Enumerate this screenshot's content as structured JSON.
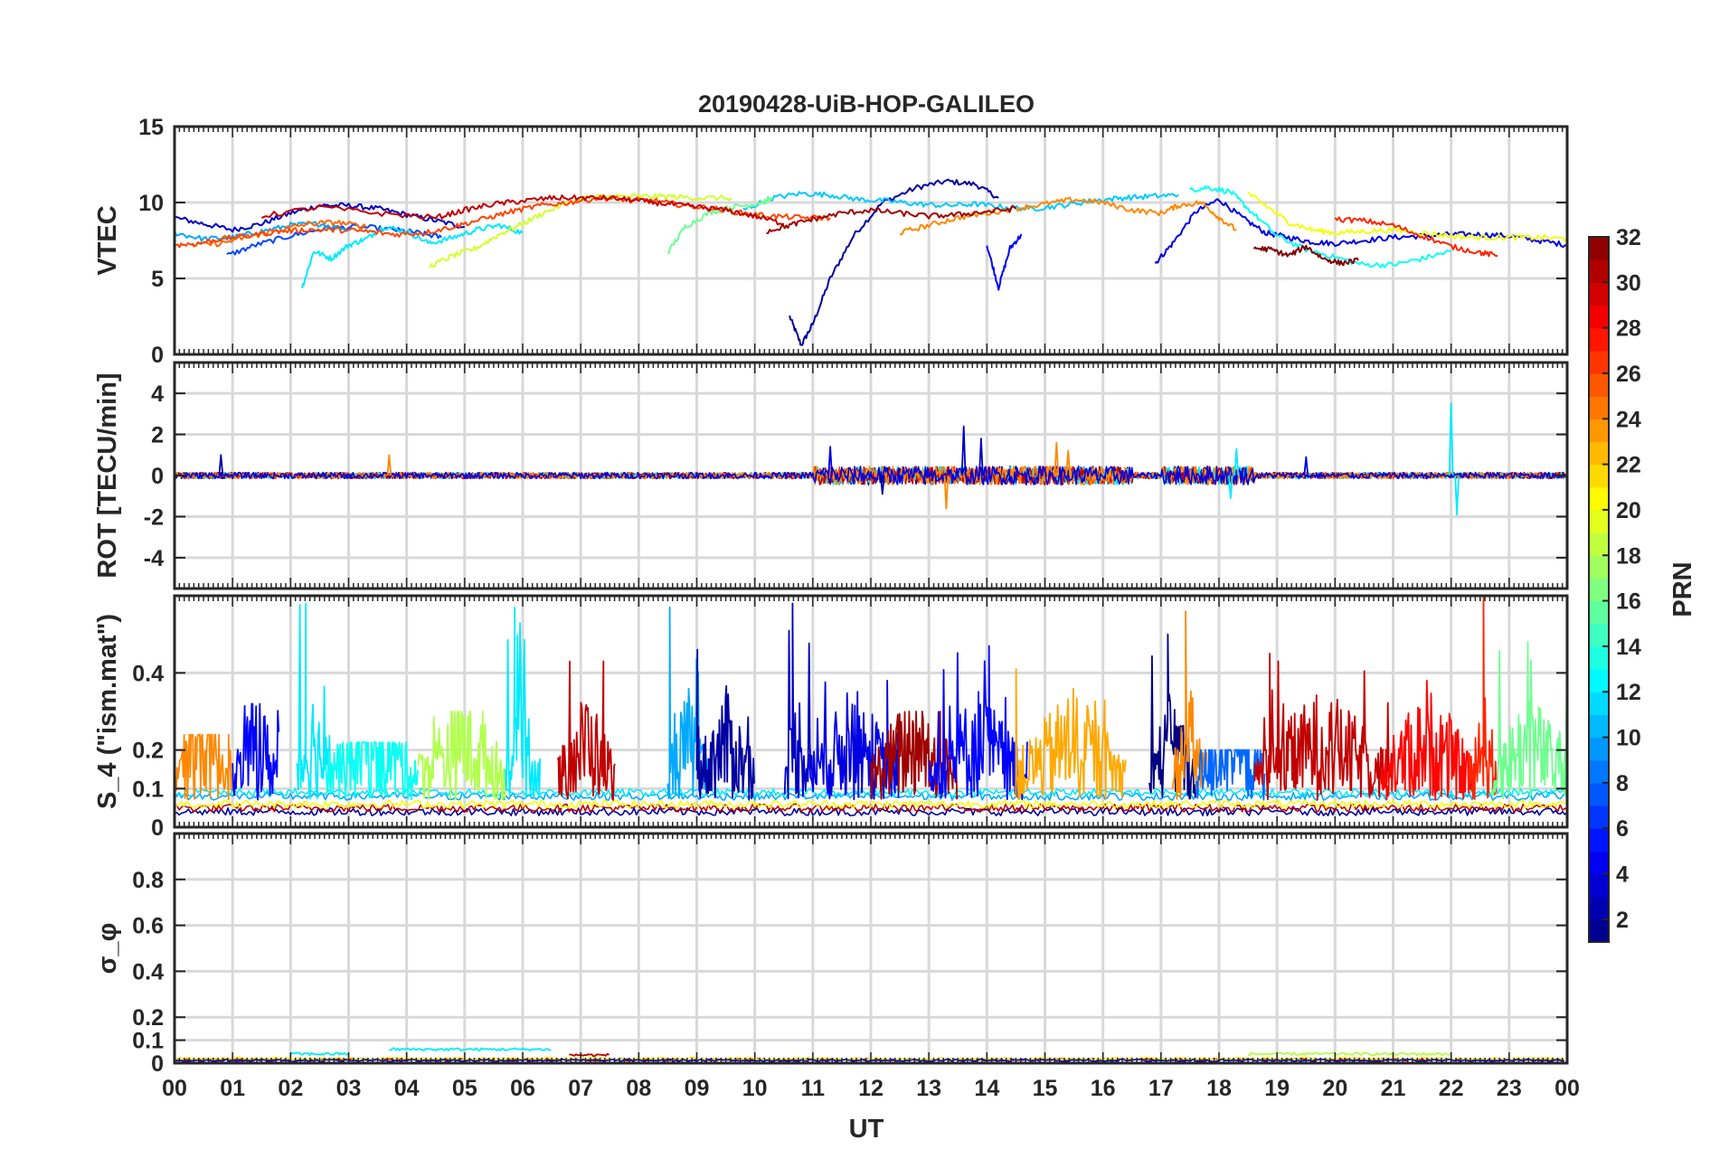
{
  "chart_data": [
    {
      "type": "line",
      "title": "20190428-UiB-HOP-GALILEO",
      "ylabel": "VTEC",
      "xlabel": "",
      "xlim": [
        0,
        24
      ],
      "ylim": [
        0,
        15
      ],
      "yticks": [
        0,
        5,
        10,
        15
      ],
      "series": [
        {
          "name": "PRN 2",
          "prn": 2,
          "x": [
            10.6,
            10.8,
            11.0,
            11.3,
            11.7,
            12.2,
            12.8,
            13.3,
            13.8,
            14.2
          ],
          "values": [
            2.5,
            0.6,
            2.0,
            5.0,
            7.8,
            10.0,
            11.0,
            11.4,
            11.2,
            10.3
          ]
        },
        {
          "name": "PRN 3",
          "prn": 3,
          "x": [
            0.0,
            0.5,
            1.0,
            1.5,
            2.0,
            2.5,
            3.0,
            3.5,
            4.0,
            4.5,
            5.0
          ],
          "values": [
            9.0,
            8.6,
            8.2,
            8.6,
            9.3,
            9.8,
            9.8,
            9.6,
            9.2,
            8.8,
            8.4
          ]
        },
        {
          "name": "PRN 4",
          "prn": 4,
          "x": [
            16.9,
            17.2,
            17.6,
            18.0,
            18.4,
            18.8,
            19.2,
            19.6,
            20.0,
            20.5,
            21.0,
            21.5,
            22.0,
            22.5,
            23.0,
            23.5,
            24.0
          ],
          "values": [
            6.0,
            7.3,
            9.4,
            10.2,
            9.0,
            8.0,
            7.7,
            7.4,
            7.3,
            7.5,
            7.7,
            7.8,
            7.9,
            7.9,
            7.8,
            7.5,
            7.2
          ]
        },
        {
          "name": "PRN 5",
          "prn": 5,
          "x": [
            14.0,
            14.2,
            14.4,
            14.6
          ],
          "values": [
            7.2,
            4.4,
            7.0,
            7.9
          ]
        },
        {
          "name": "PRN 7",
          "prn": 7,
          "x": [
            0.9,
            1.4,
            2.0,
            2.6,
            3.2,
            3.8,
            4.2,
            4.6
          ],
          "values": [
            6.5,
            7.2,
            7.8,
            8.3,
            8.4,
            8.2,
            8.0,
            7.7
          ]
        },
        {
          "name": "PRN 10",
          "prn": 10,
          "x": [
            0.0,
            0.5,
            1.0,
            1.5,
            2.0,
            2.5,
            3.0
          ],
          "values": [
            8.0,
            7.6,
            7.7,
            8.1,
            8.5,
            8.6,
            8.2
          ]
        },
        {
          "name": "PRN 12",
          "prn": 12,
          "x": [
            2.2,
            2.4,
            2.7,
            3.0,
            3.3,
            3.6,
            4.0,
            4.4,
            4.8,
            5.2,
            5.6,
            6.0
          ],
          "values": [
            4.4,
            6.8,
            6.3,
            7.2,
            7.6,
            8.4,
            8.1,
            7.3,
            7.7,
            8.2,
            8.5,
            8.0
          ]
        },
        {
          "name": "PRN 13",
          "prn": 13,
          "x": [
            17.5,
            17.8,
            18.2,
            18.5,
            19.0,
            19.5,
            20.0,
            20.5,
            21.0,
            21.5,
            22.0
          ],
          "values": [
            10.8,
            11.0,
            10.7,
            9.6,
            7.8,
            6.9,
            6.4,
            5.9,
            5.9,
            6.3,
            6.8
          ]
        },
        {
          "name": "PRN 11",
          "prn": 11,
          "x": [
            9.8,
            10.3,
            10.8,
            11.3,
            11.8,
            12.3,
            12.8,
            13.3,
            13.8,
            14.3,
            14.8,
            15.3,
            15.8,
            16.3,
            16.8,
            17.3
          ],
          "values": [
            9.5,
            10.3,
            10.6,
            10.5,
            10.2,
            10.1,
            9.9,
            9.8,
            9.9,
            9.7,
            9.6,
            9.8,
            10.1,
            10.3,
            10.4,
            10.5
          ]
        },
        {
          "name": "PRN 16",
          "prn": 16,
          "x": [
            8.5,
            8.8,
            9.2,
            9.6,
            10.0,
            10.3
          ],
          "values": [
            6.7,
            8.4,
            9.3,
            9.7,
            9.9,
            10.2
          ]
        },
        {
          "name": "PRN 19",
          "prn": 19,
          "x": [
            4.4,
            4.8,
            5.2,
            5.6,
            6.0,
            6.4,
            7.0,
            7.5,
            8.0,
            8.5,
            9.0,
            9.6
          ],
          "values": [
            5.8,
            6.5,
            7.0,
            7.9,
            8.6,
            9.4,
            10.3,
            10.4,
            10.4,
            10.4,
            10.3,
            10.3
          ]
        },
        {
          "name": "PRN 20",
          "prn": 20,
          "x": [
            18.5,
            18.8,
            19.2,
            19.6,
            20.0,
            20.5,
            21.0,
            21.5,
            22.0,
            22.5,
            23.0,
            23.5,
            24.0
          ],
          "values": [
            10.6,
            9.8,
            8.7,
            8.2,
            8.0,
            8.1,
            8.2,
            8.0,
            7.8,
            7.7,
            7.7,
            7.7,
            7.6
          ]
        },
        {
          "name": "PRN 24",
          "prn": 24,
          "x": [
            12.5,
            13.0,
            13.5,
            14.0,
            14.5,
            15.0,
            15.5,
            16.0,
            16.5,
            17.0,
            17.3,
            17.7,
            18.0,
            18.3
          ],
          "values": [
            8.0,
            8.5,
            9.0,
            9.3,
            9.6,
            9.9,
            10.2,
            10.0,
            9.5,
            9.3,
            9.8,
            10.0,
            9.0,
            8.2
          ]
        },
        {
          "name": "PRN 25",
          "prn": 25,
          "x": [
            0.3,
            0.8,
            1.3,
            1.8,
            2.3,
            2.8,
            3.3
          ],
          "values": [
            7.2,
            7.3,
            7.8,
            8.2,
            8.6,
            8.7,
            8.4
          ]
        },
        {
          "name": "PRN 26",
          "prn": 26,
          "x": [
            0.0,
            0.4,
            0.8,
            1.3,
            1.8,
            2.3,
            2.8,
            3.3,
            3.8,
            4.3,
            4.8,
            5.3,
            5.8,
            6.3,
            6.8,
            7.3,
            7.8,
            8.3,
            8.8,
            9.3,
            9.8,
            10.3,
            10.8,
            11.3
          ],
          "values": [
            7.2,
            7.3,
            7.6,
            7.8,
            8.1,
            8.2,
            8.2,
            8.1,
            7.9,
            8.0,
            8.4,
            8.9,
            9.4,
            9.8,
            10.0,
            10.3,
            10.2,
            10.1,
            9.8,
            9.6,
            9.3,
            9.1,
            9.0,
            9.0
          ]
        },
        {
          "name": "PRN 27",
          "prn": 27,
          "x": [
            20.0,
            20.5,
            21.0,
            21.5,
            22.0,
            22.5,
            22.8
          ],
          "values": [
            8.9,
            8.8,
            8.5,
            7.8,
            7.1,
            6.7,
            6.5
          ]
        },
        {
          "name": "PRN 30",
          "prn": 30,
          "x": [
            1.5,
            2.5,
            3.5,
            4.5,
            5.0,
            5.5,
            6.0,
            6.5,
            7.0,
            7.5,
            8.0,
            8.5,
            9.0,
            9.5,
            10.0,
            10.5
          ],
          "values": [
            9.1,
            9.7,
            9.3,
            9.0,
            9.5,
            9.9,
            10.1,
            10.3,
            10.3,
            10.3,
            10.1,
            9.9,
            9.7,
            9.5,
            9.1,
            8.6
          ]
        },
        {
          "name": "PRN 31",
          "prn": 31,
          "x": [
            10.2,
            10.6,
            11.0,
            11.5,
            12.0,
            12.5,
            13.0,
            13.5,
            14.0,
            14.5
          ],
          "values": [
            8.1,
            8.5,
            8.9,
            9.3,
            9.5,
            9.3,
            9.1,
            9.2,
            9.4,
            9.6
          ]
        },
        {
          "name": "PRN 32",
          "prn": 32,
          "x": [
            18.6,
            18.9,
            19.2,
            19.5,
            19.8,
            20.1,
            20.4
          ],
          "values": [
            7.0,
            6.9,
            6.5,
            7.1,
            6.3,
            6.0,
            6.2
          ]
        }
      ]
    },
    {
      "type": "line",
      "ylabel": "ROT [TECU/min]",
      "xlim": [
        0,
        24
      ],
      "ylim": [
        -5.5,
        5.5
      ],
      "yticks": [
        -4,
        -2,
        0,
        2,
        4
      ],
      "baseline_noise": 0.15,
      "spikes": [
        {
          "x": 0.8,
          "value": 1.0,
          "prn": 2
        },
        {
          "x": 3.7,
          "value": 1.0,
          "prn": 24
        },
        {
          "x": 11.3,
          "value": 1.4,
          "prn": 4
        },
        {
          "x": 12.2,
          "value": -0.9,
          "prn": 2
        },
        {
          "x": 13.6,
          "value": 2.4,
          "prn": 3
        },
        {
          "x": 13.9,
          "value": 1.8,
          "prn": 3
        },
        {
          "x": 13.3,
          "value": -1.6,
          "prn": 24
        },
        {
          "x": 15.2,
          "value": 1.6,
          "prn": 24
        },
        {
          "x": 15.4,
          "value": 1.2,
          "prn": 24
        },
        {
          "x": 18.2,
          "value": -1.1,
          "prn": 12
        },
        {
          "x": 18.3,
          "value": 1.3,
          "prn": 12
        },
        {
          "x": 19.5,
          "value": 0.9,
          "prn": 4
        },
        {
          "x": 22.0,
          "value": 3.5,
          "prn": 12
        },
        {
          "x": 22.1,
          "value": -1.9,
          "prn": 12
        }
      ]
    },
    {
      "type": "line",
      "ylabel": "S_4 (\"ism.mat\")",
      "xlim": [
        0,
        24
      ],
      "ylim": [
        0,
        0.6
      ],
      "yticks": [
        0,
        0.1,
        0.2,
        0.4
      ],
      "bursts": [
        {
          "start": 0.0,
          "end": 1.0,
          "peak": 0.24,
          "prn": 24
        },
        {
          "start": 1.0,
          "end": 1.8,
          "peak": 0.32,
          "prn": 5
        },
        {
          "start": 2.1,
          "end": 2.7,
          "peak": 0.58,
          "prn": 12
        },
        {
          "start": 2.6,
          "end": 4.2,
          "peak": 0.22,
          "prn": 13
        },
        {
          "start": 4.2,
          "end": 5.7,
          "peak": 0.3,
          "prn": 18
        },
        {
          "start": 5.7,
          "end": 6.3,
          "peak": 0.57,
          "prn": 12
        },
        {
          "start": 6.6,
          "end": 7.6,
          "peak": 0.43,
          "prn": 30
        },
        {
          "start": 8.5,
          "end": 9.2,
          "peak": 0.57,
          "prn": 10
        },
        {
          "start": 9.0,
          "end": 10.0,
          "peak": 0.46,
          "prn": 2
        },
        {
          "start": 10.5,
          "end": 11.0,
          "peak": 0.58,
          "prn": 3
        },
        {
          "start": 10.9,
          "end": 12.5,
          "peak": 0.38,
          "prn": 4
        },
        {
          "start": 12.0,
          "end": 13.5,
          "peak": 0.3,
          "prn": 31
        },
        {
          "start": 13.0,
          "end": 14.7,
          "peak": 0.47,
          "prn": 5
        },
        {
          "start": 14.5,
          "end": 16.4,
          "peak": 0.41,
          "prn": 23
        },
        {
          "start": 16.8,
          "end": 17.6,
          "peak": 0.5,
          "prn": 1
        },
        {
          "start": 17.2,
          "end": 17.8,
          "peak": 0.56,
          "prn": 24
        },
        {
          "start": 17.6,
          "end": 18.8,
          "peak": 0.2,
          "prn": 8
        },
        {
          "start": 18.6,
          "end": 21.0,
          "peak": 0.45,
          "prn": 30
        },
        {
          "start": 20.8,
          "end": 22.4,
          "peak": 0.38,
          "prn": 28
        },
        {
          "start": 22.3,
          "end": 22.8,
          "peak": 0.6,
          "prn": 27
        },
        {
          "start": 22.7,
          "end": 24.0,
          "peak": 0.48,
          "prn": 16
        }
      ]
    },
    {
      "type": "line",
      "ylabel": "σ_φ",
      "xlabel": "UT",
      "xlim": [
        0,
        24
      ],
      "ylim": [
        0,
        1
      ],
      "yticks": [
        0,
        0.1,
        0.2,
        0.4,
        0.6,
        0.8
      ],
      "baseline": 0.02,
      "bumps": [
        {
          "start": 2.0,
          "end": 3.0,
          "value": 0.04,
          "prn": 12
        },
        {
          "start": 3.7,
          "end": 6.5,
          "value": 0.06,
          "prn": 12
        },
        {
          "start": 6.8,
          "end": 7.5,
          "value": 0.035,
          "prn": 30
        },
        {
          "start": 18.5,
          "end": 22.0,
          "value": 0.04,
          "prn": 18
        }
      ]
    }
  ],
  "x_tick_labels": [
    "00",
    "01",
    "02",
    "03",
    "04",
    "05",
    "06",
    "07",
    "08",
    "09",
    "10",
    "11",
    "12",
    "13",
    "14",
    "15",
    "16",
    "17",
    "18",
    "19",
    "20",
    "21",
    "22",
    "23",
    "00"
  ],
  "colorbar": {
    "label": "PRN",
    "range": [
      1,
      32
    ],
    "tick_labels": [
      "2",
      "4",
      "6",
      "8",
      "10",
      "12",
      "14",
      "16",
      "18",
      "20",
      "22",
      "24",
      "26",
      "28",
      "30",
      "32"
    ]
  }
}
